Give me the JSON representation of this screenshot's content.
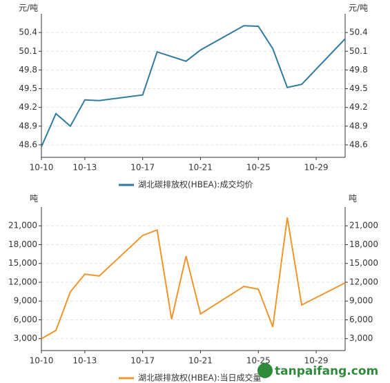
{
  "chart_data": [
    {
      "type": "line",
      "y_label": "元/吨",
      "x": [
        "10-10",
        "10-11",
        "10-12",
        "10-13",
        "10-14",
        "10-17",
        "10-18",
        "10-20",
        "10-21",
        "10-24",
        "10-25",
        "10-26",
        "10-27",
        "10-28",
        "10-31"
      ],
      "series": [
        {
          "name": "湖北碳排放权(HBEA):成交均价",
          "color": "#2f7a9e",
          "values": [
            48.57,
            49.1,
            48.9,
            49.32,
            49.31,
            49.4,
            50.09,
            49.94,
            50.12,
            50.51,
            50.5,
            50.14,
            49.52,
            49.57,
            50.3
          ]
        }
      ],
      "xlim": [
        "10-10",
        "10-31"
      ],
      "xticks": [
        "10-10",
        "10-13",
        "10-17",
        "10-21",
        "10-25",
        "10-29"
      ],
      "ylim": [
        48.4,
        50.7
      ],
      "yticks": [
        48.6,
        48.9,
        49.2,
        49.5,
        49.8,
        50.1,
        50.4
      ],
      "grid": true,
      "legend": "bottom"
    },
    {
      "type": "line",
      "y_label": "吨",
      "x": [
        "10-10",
        "10-11",
        "10-12",
        "10-13",
        "10-14",
        "10-17",
        "10-18",
        "10-19",
        "10-20",
        "10-21",
        "10-24",
        "10-25",
        "10-26",
        "10-27",
        "10-28",
        "10-31"
      ],
      "series": [
        {
          "name": "湖北碳排放权(HBEA):当日成交量",
          "color": "#f0952a",
          "values": [
            3000,
            4300,
            10460,
            13300,
            13000,
            19460,
            20340,
            6100,
            16170,
            6950,
            11340,
            10900,
            4870,
            22320,
            8380,
            11900
          ]
        }
      ],
      "xlim": [
        "10-10",
        "10-31"
      ],
      "xticks": [
        "10-10",
        "10-13",
        "10-17",
        "10-21",
        "10-25",
        "10-29"
      ],
      "ylim": [
        1100,
        24000
      ],
      "yticks": [
        {
          "value": 3000,
          "label": "3,000"
        },
        {
          "value": 6000,
          "label": "6,000"
        },
        {
          "value": 9000,
          "label": "9,000"
        },
        {
          "value": 12000,
          "label": "12,000"
        },
        {
          "value": 15000,
          "label": "15,000"
        },
        {
          "value": 18000,
          "label": "18,000"
        },
        {
          "value": 21000,
          "label": "21,000"
        }
      ],
      "grid": true,
      "legend": "bottom"
    }
  ],
  "watermark": "tanpaifang.com"
}
